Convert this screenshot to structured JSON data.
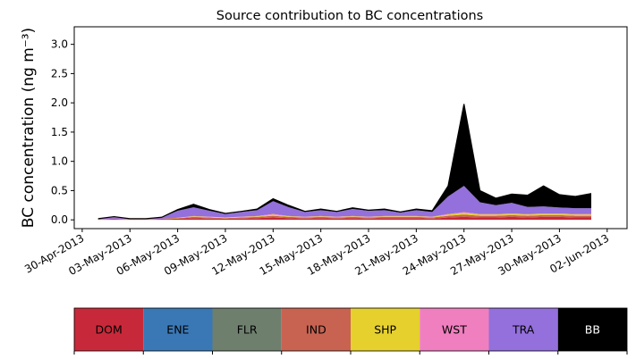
{
  "chart_data": {
    "type": "area",
    "title": "Source contribution to BC concentrations",
    "ylabel": "BC concentration (ng m⁻³)",
    "xlabel": "",
    "x_type": "date",
    "xlim": [
      "2013-04-29T12:00",
      "2013-06-03T06:00"
    ],
    "ylim": [
      -0.15,
      3.3
    ],
    "x_tick_labels": [
      "30-Apr-2013",
      "03-May-2013",
      "06-May-2013",
      "09-May-2013",
      "12-May-2013",
      "15-May-2013",
      "18-May-2013",
      "21-May-2013",
      "24-May-2013",
      "27-May-2013",
      "30-May-2013",
      "02-Jun-2013"
    ],
    "x_ticks": [
      "2013-04-30",
      "2013-05-03",
      "2013-05-06",
      "2013-05-09",
      "2013-05-12",
      "2013-05-15",
      "2013-05-18",
      "2013-05-21",
      "2013-05-24",
      "2013-05-27",
      "2013-05-30",
      "2013-06-02"
    ],
    "y_ticks": [
      0.0,
      0.5,
      1.0,
      1.5,
      2.0,
      2.5,
      3.0
    ],
    "y_tick_labels": [
      "0.0",
      "0.5",
      "1.0",
      "1.5",
      "2.0",
      "2.5",
      "3.0"
    ],
    "stacked": true,
    "grid": false,
    "legend_position": "bottom",
    "x": [
      "2013-05-01",
      "2013-05-02",
      "2013-05-03",
      "2013-05-04",
      "2013-05-05",
      "2013-05-06",
      "2013-05-07",
      "2013-05-08",
      "2013-05-09",
      "2013-05-10",
      "2013-05-11",
      "2013-05-12",
      "2013-05-13",
      "2013-05-14",
      "2013-05-15",
      "2013-05-16",
      "2013-05-17",
      "2013-05-18",
      "2013-05-19",
      "2013-05-20",
      "2013-05-21",
      "2013-05-22",
      "2013-05-23",
      "2013-05-24",
      "2013-05-25",
      "2013-05-26",
      "2013-05-27",
      "2013-05-28",
      "2013-05-29",
      "2013-05-30",
      "2013-05-31",
      "2013-06-01"
    ],
    "series": [
      {
        "name": "DOM",
        "color": "#c8293a",
        "values": [
          0.005,
          0.01,
          0.005,
          0.005,
          0.01,
          0.02,
          0.03,
          0.02,
          0.02,
          0.02,
          0.03,
          0.04,
          0.03,
          0.02,
          0.03,
          0.02,
          0.03,
          0.02,
          0.03,
          0.03,
          0.03,
          0.02,
          0.04,
          0.05,
          0.04,
          0.04,
          0.05,
          0.04,
          0.05,
          0.05,
          0.04,
          0.04
        ]
      },
      {
        "name": "ENE",
        "color": "#3a78b5",
        "values": [
          0.0,
          0.0,
          0.0,
          0.0,
          0.0,
          0.0,
          0.0,
          0.0,
          0.0,
          0.0,
          0.0,
          0.0,
          0.0,
          0.0,
          0.0,
          0.0,
          0.0,
          0.0,
          0.0,
          0.0,
          0.0,
          0.0,
          0.0,
          0.0,
          0.0,
          0.0,
          0.0,
          0.0,
          0.0,
          0.0,
          0.0,
          0.0
        ]
      },
      {
        "name": "FLR",
        "color": "#6e7f6e",
        "values": [
          0.0,
          0.0,
          0.0,
          0.0,
          0.0,
          0.0,
          0.0,
          0.0,
          0.0,
          0.0,
          0.0,
          0.0,
          0.0,
          0.0,
          0.0,
          0.0,
          0.0,
          0.0,
          0.0,
          0.0,
          0.0,
          0.0,
          0.0,
          0.0,
          0.0,
          0.0,
          0.0,
          0.0,
          0.0,
          0.0,
          0.0,
          0.0
        ]
      },
      {
        "name": "IND",
        "color": "#c86352",
        "values": [
          0.005,
          0.01,
          0.005,
          0.005,
          0.01,
          0.01,
          0.02,
          0.02,
          0.01,
          0.02,
          0.02,
          0.03,
          0.02,
          0.02,
          0.02,
          0.02,
          0.02,
          0.02,
          0.02,
          0.02,
          0.02,
          0.02,
          0.03,
          0.04,
          0.03,
          0.03,
          0.03,
          0.03,
          0.03,
          0.03,
          0.03,
          0.03
        ]
      },
      {
        "name": "SHP",
        "color": "#e6d02e",
        "values": [
          0.0,
          0.0,
          0.0,
          0.0,
          0.0,
          0.005,
          0.01,
          0.01,
          0.01,
          0.01,
          0.01,
          0.02,
          0.01,
          0.01,
          0.01,
          0.01,
          0.01,
          0.01,
          0.01,
          0.01,
          0.01,
          0.01,
          0.02,
          0.03,
          0.02,
          0.02,
          0.02,
          0.02,
          0.02,
          0.02,
          0.02,
          0.02
        ]
      },
      {
        "name": "WST",
        "color": "#f07fbf",
        "values": [
          0.0,
          0.0,
          0.0,
          0.0,
          0.0,
          0.0,
          0.005,
          0.005,
          0.0,
          0.005,
          0.005,
          0.01,
          0.005,
          0.005,
          0.005,
          0.005,
          0.005,
          0.005,
          0.005,
          0.005,
          0.005,
          0.005,
          0.01,
          0.01,
          0.01,
          0.01,
          0.01,
          0.01,
          0.01,
          0.01,
          0.01,
          0.01
        ]
      },
      {
        "name": "TRA",
        "color": "#9370db",
        "values": [
          0.01,
          0.03,
          0.01,
          0.01,
          0.02,
          0.12,
          0.15,
          0.1,
          0.06,
          0.08,
          0.1,
          0.22,
          0.15,
          0.08,
          0.1,
          0.08,
          0.12,
          0.1,
          0.1,
          0.06,
          0.1,
          0.08,
          0.3,
          0.45,
          0.2,
          0.15,
          0.18,
          0.12,
          0.12,
          0.1,
          0.1,
          0.1
        ]
      },
      {
        "name": "BB",
        "color": "#000000",
        "values": [
          0.0,
          0.005,
          0.0,
          0.0,
          0.005,
          0.02,
          0.05,
          0.02,
          0.01,
          0.01,
          0.02,
          0.04,
          0.03,
          0.01,
          0.02,
          0.01,
          0.02,
          0.01,
          0.02,
          0.01,
          0.02,
          0.02,
          0.18,
          1.4,
          0.2,
          0.12,
          0.15,
          0.2,
          0.35,
          0.22,
          0.2,
          0.25
        ]
      }
    ]
  },
  "legend": {
    "items": [
      {
        "label": "DOM",
        "color": "#c8293a",
        "text_color": "#000000"
      },
      {
        "label": "ENE",
        "color": "#3a78b5",
        "text_color": "#000000"
      },
      {
        "label": "FLR",
        "color": "#6e7f6e",
        "text_color": "#000000"
      },
      {
        "label": "IND",
        "color": "#c86352",
        "text_color": "#000000"
      },
      {
        "label": "SHP",
        "color": "#e6d02e",
        "text_color": "#000000"
      },
      {
        "label": "WST",
        "color": "#f07fbf",
        "text_color": "#000000"
      },
      {
        "label": "TRA",
        "color": "#9370db",
        "text_color": "#000000"
      },
      {
        "label": "BB",
        "color": "#000000",
        "text_color": "#ffffff"
      }
    ]
  }
}
